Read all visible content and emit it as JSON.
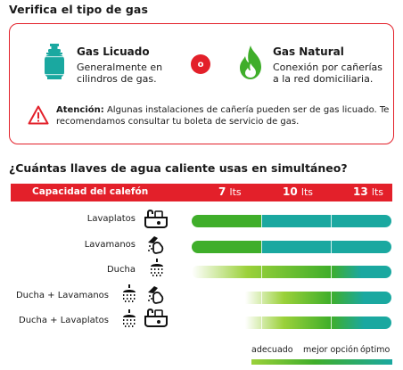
{
  "heading_gas": "Verifica el tipo de gas",
  "gas_options": [
    {
      "title": "Gas Licuado",
      "desc": "Generalmente en cilindros de gas.",
      "icon": "gas-cylinder-icon",
      "color": "#1aa8a0"
    },
    {
      "title": "Gas Natural",
      "desc": "Conexión por cañerías a la red domiciliaria.",
      "icon": "flame-icon",
      "color": "#3fae2a"
    }
  ],
  "separator": "o",
  "warning": {
    "bold": "Atención:",
    "text": " Algunas instalaciones de cañería pueden ser de gas licuado. Te recomendamos consultar tu boleta de servicio de gas."
  },
  "heading_llaves": "¿Cuántas llaves de agua caliente usas en simultáneo?",
  "capacity": {
    "label": "Capacidad del calefón",
    "values": [
      {
        "num": "7",
        "unit": "lts"
      },
      {
        "num": "10",
        "unit": "lts"
      },
      {
        "num": "13",
        "unit": "lts"
      }
    ]
  },
  "rows": [
    {
      "label": "Lavaplatos",
      "icons": [
        "sink-icon"
      ],
      "suitability": {
        "adecuado_from_lts": 7,
        "optimo_from_lts": 10
      }
    },
    {
      "label": "Lavamanos",
      "icons": [
        "hand-wash-icon"
      ],
      "suitability": {
        "adecuado_from_lts": 7,
        "optimo_from_lts": 10
      }
    },
    {
      "label": "Ducha",
      "icons": [
        "shower-icon"
      ],
      "suitability": {
        "adecuado_from_lts": 7,
        "optimo_from_lts": 13
      }
    },
    {
      "label": "Ducha + Lavamanos",
      "icons": [
        "shower-icon",
        "hand-wash-icon"
      ],
      "suitability": {
        "adecuado_from_lts": 10,
        "optimo_from_lts": 13
      }
    },
    {
      "label": "Ducha + Lavaplatos",
      "icons": [
        "shower-icon",
        "sink-icon"
      ],
      "suitability": {
        "adecuado_from_lts": 10,
        "optimo_from_lts": 13
      }
    }
  ],
  "legend": [
    "adecuado",
    "mejor opción",
    "óptimo"
  ],
  "colors": {
    "accent": "#e3202a",
    "green": "#3fae2a",
    "light_green": "#9bd13a",
    "teal": "#1aa8a0"
  }
}
